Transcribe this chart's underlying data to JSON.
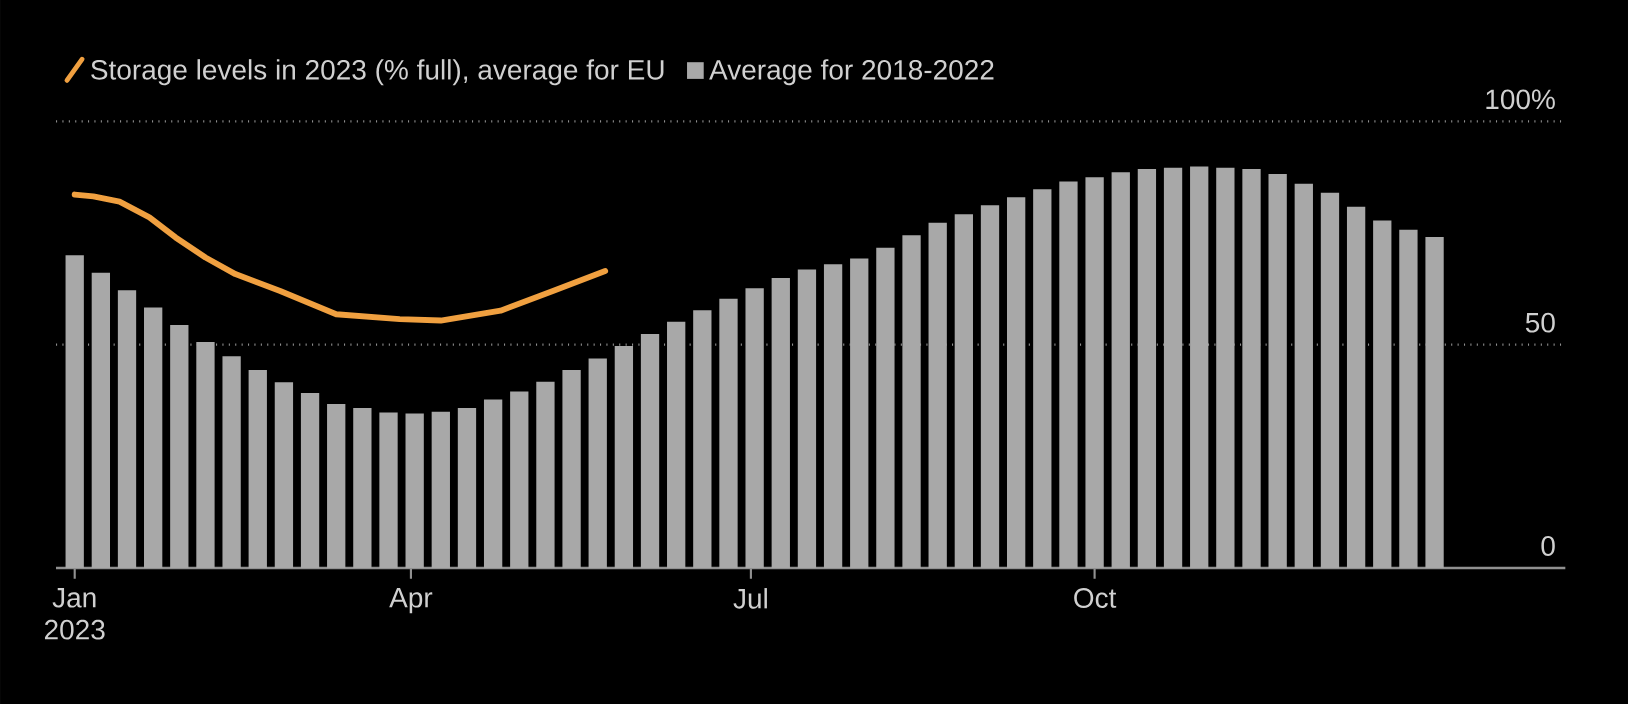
{
  "chart_data": {
    "type": "bar",
    "x": [
      "2023-01-01",
      "2023-01-08",
      "2023-01-15",
      "2023-01-22",
      "2023-01-29",
      "2023-02-05",
      "2023-02-12",
      "2023-02-19",
      "2023-02-26",
      "2023-03-05",
      "2023-03-12",
      "2023-03-19",
      "2023-03-26",
      "2023-04-02",
      "2023-04-09",
      "2023-04-16",
      "2023-04-23",
      "2023-04-30",
      "2023-05-07",
      "2023-05-14",
      "2023-05-21",
      "2023-05-28",
      "2023-06-04",
      "2023-06-11",
      "2023-06-18",
      "2023-06-25",
      "2023-07-02",
      "2023-07-09",
      "2023-07-16",
      "2023-07-23",
      "2023-07-30",
      "2023-08-06",
      "2023-08-13",
      "2023-08-20",
      "2023-08-27",
      "2023-09-03",
      "2023-09-10",
      "2023-09-17",
      "2023-09-24",
      "2023-10-01",
      "2023-10-08",
      "2023-10-15",
      "2023-10-22",
      "2023-10-29",
      "2023-11-05",
      "2023-11-12",
      "2023-11-19",
      "2023-11-26",
      "2023-12-03",
      "2023-12-10",
      "2023-12-17",
      "2023-12-24",
      "2023-12-31"
    ],
    "series": [
      {
        "name": "Storage levels in 2023 (% full), average for EU",
        "type": "line",
        "color": "#f0a040",
        "x": [
          "2023-01-01",
          "2023-01-06",
          "2023-01-13",
          "2023-01-21",
          "2023-01-28",
          "2023-02-05",
          "2023-02-13",
          "2023-02-25",
          "2023-03-12",
          "2023-03-29",
          "2023-04-09",
          "2023-04-25",
          "2023-05-09",
          "2023-05-23"
        ],
        "values": [
          83.6,
          83.2,
          82,
          78.5,
          74,
          69.5,
          65.8,
          62,
          56.8,
          55.7,
          55.4,
          57.6,
          62,
          66.5
        ]
      },
      {
        "name": "Average for 2018-2022",
        "color": "#a8a8a8",
        "values": [
          70,
          66.1,
          62.2,
          58.3,
          54.4,
          50.6,
          47.4,
          44.3,
          41.6,
          39.2,
          36.7,
          35.8,
          34.8,
          34.6,
          35.0,
          35.8,
          37.7,
          39.5,
          41.7,
          44.3,
          46.9,
          49.7,
          52.4,
          55.1,
          57.7,
          60.3,
          62.6,
          64.9,
          66.8,
          68.0,
          69.3,
          71.7,
          74.5,
          77.3,
          79.2,
          81.2,
          83.0,
          84.8,
          86.5,
          87.5,
          88.6,
          89.3,
          89.6,
          89.9,
          89.6,
          89.3,
          88.2,
          86.0,
          84.0,
          80.9,
          77.8,
          75.7,
          74.1
        ]
      }
    ],
    "xlim": [
      "2022-12-27",
      "2024-02-04"
    ],
    "xticks": [
      {
        "value": "2023-01-01",
        "label": "Jan 2023"
      },
      {
        "value": "2023-04-01",
        "label": "Apr"
      },
      {
        "value": "2023-07-01",
        "label": "Jul"
      },
      {
        "value": "2023-10-01",
        "label": "Oct"
      }
    ],
    "ylim": [
      0,
      100
    ],
    "yticks": [
      0,
      50,
      {
        "value": 100,
        "label": "100%"
      }
    ],
    "grid": "y",
    "legend": "top left"
  }
}
